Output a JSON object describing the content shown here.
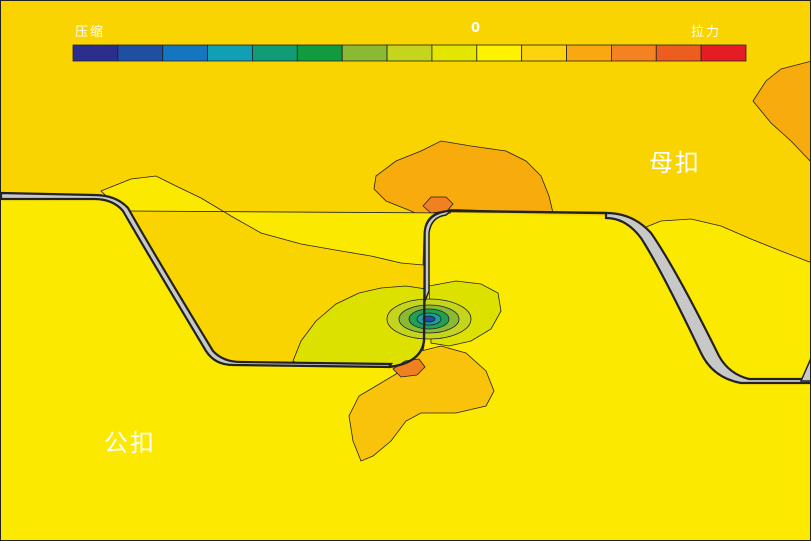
{
  "legend": {
    "left_label": "压缩",
    "center_label": "0",
    "right_label": "拉力",
    "colors": [
      "#2b2e8e",
      "#1f4ea3",
      "#1476c1",
      "#109fb5",
      "#0f9c76",
      "#0f9b3e",
      "#8ab933",
      "#c5d51e",
      "#e5e600",
      "#fff200",
      "#fdd30d",
      "#f9a80f",
      "#f58220",
      "#ec5d1f",
      "#e41d25"
    ]
  },
  "parts": {
    "female_label": "母扣",
    "male_label": "公扣"
  },
  "colors": {
    "upper_field": "#fad400",
    "lower_field": "#fce900",
    "orange_zone": "#f8ab0d",
    "light_orange": "#f9c30b",
    "red_orange": "#f08020",
    "yellow_green": "#dde100",
    "green": "#20a050",
    "cyan": "#1ba0a0",
    "gap_gray": "#c8c8c8",
    "outline": "#222222"
  }
}
